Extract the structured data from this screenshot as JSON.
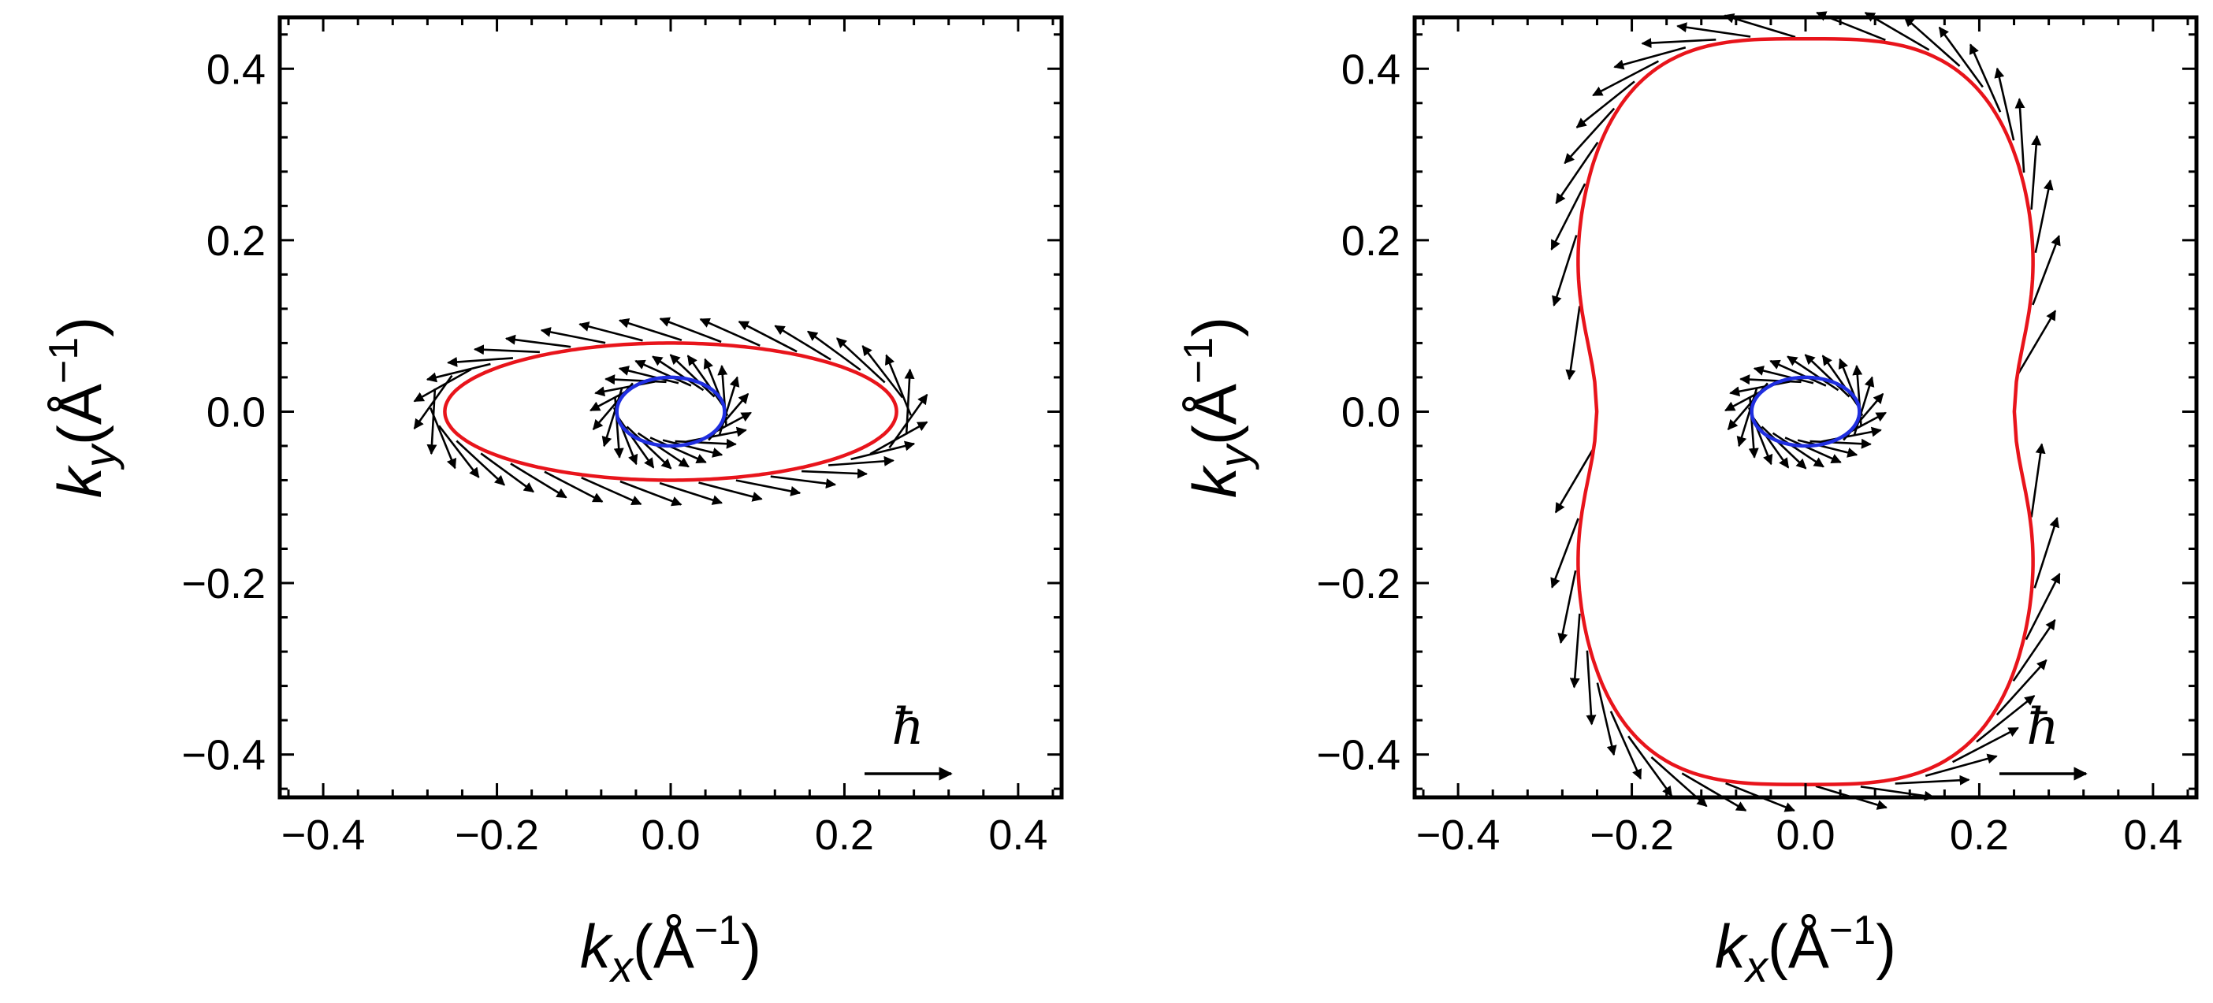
{
  "chart_data": [
    {
      "type": "vector-field",
      "panel": "left",
      "xlim": [
        -0.45,
        0.45
      ],
      "ylim": [
        -0.45,
        0.46
      ],
      "xticks": [
        -0.4,
        -0.2,
        0.0,
        0.2,
        0.4
      ],
      "yticks": [
        -0.4,
        -0.2,
        0.0,
        0.2,
        0.4
      ],
      "xtick_labels": [
        "−0.4",
        "−0.2",
        "0.0",
        "0.2",
        "0.4"
      ],
      "ytick_labels": [
        "−0.4",
        "−0.2",
        "0.0",
        "0.2",
        "0.4"
      ],
      "xlabel": {
        "var": "k",
        "sub": "x",
        "open": "(Å",
        "sup": "−1",
        "close": ")"
      },
      "ylabel": {
        "var": "k",
        "sub": "y",
        "open": "(Å",
        "sup": "−1",
        "close": ")"
      },
      "legend_symbol": "ħ",
      "curves": [
        {
          "name": "outer",
          "color": "#e8141b",
          "shape": "ellipse",
          "a": 0.26,
          "b": 0.08,
          "n": 1
        },
        {
          "name": "inner",
          "color": "#1f2ee0",
          "shape": "ellipse",
          "a": 0.062,
          "b": 0.04,
          "n": 1
        }
      ],
      "arrows": [
        {
          "curve": "outer",
          "count": 36,
          "length": 0.075,
          "tilt": 0.35,
          "radial_offset": 0.015
        },
        {
          "curve": "inner",
          "count": 24,
          "length": 0.07,
          "tilt": 0.55,
          "radial_offset": 0.005
        }
      ]
    },
    {
      "type": "vector-field",
      "panel": "right",
      "xlim": [
        -0.45,
        0.45
      ],
      "ylim": [
        -0.45,
        0.46
      ],
      "xticks": [
        -0.4,
        -0.2,
        0.0,
        0.2,
        0.4
      ],
      "yticks": [
        -0.4,
        -0.2,
        0.0,
        0.2,
        0.4
      ],
      "xtick_labels": [
        "−0.4",
        "−0.2",
        "0.0",
        "0.2",
        "0.4"
      ],
      "ytick_labels": [
        "−0.4",
        "−0.2",
        "0.0",
        "0.2",
        "0.4"
      ],
      "xlabel": {
        "var": "k",
        "sub": "x",
        "open": "(Å",
        "sup": "−1",
        "close": ")"
      },
      "ylabel": {
        "var": "k",
        "sub": "y",
        "open": "(Å",
        "sup": "−1",
        "close": ")"
      },
      "legend_symbol": "ħ",
      "curves": [
        {
          "name": "outer",
          "color": "#e8141b",
          "shape": "superellipse",
          "a": 0.27,
          "b": 0.435,
          "n": 3.2,
          "waist": 0.11
        },
        {
          "name": "inner",
          "color": "#1f2ee0",
          "shape": "ellipse",
          "a": 0.062,
          "b": 0.04,
          "n": 1
        }
      ],
      "arrows": [
        {
          "curve": "outer",
          "count": 44,
          "length": 0.085,
          "tilt": 0.35,
          "radial_offset": 0.015
        },
        {
          "curve": "inner",
          "count": 24,
          "length": 0.07,
          "tilt": 0.55,
          "radial_offset": 0.005
        }
      ]
    }
  ]
}
